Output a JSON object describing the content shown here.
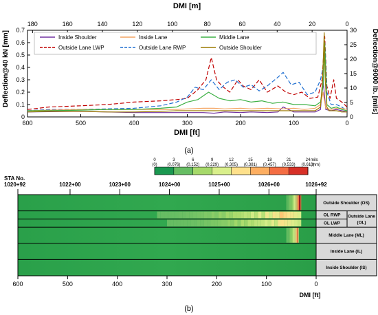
{
  "chart_data": [
    {
      "type": "line",
      "panel_label": "(a)",
      "xlabel_bottom": "DMI [ft]",
      "xlabel_top": "DMI [m]",
      "ylabel_left": "Deflection@40 kN [mm]",
      "ylabel_right": "Deflection@9000 lb. [mils]",
      "xlim": [
        600,
        0
      ],
      "ylim": [
        0,
        0.7
      ],
      "ylim_right": [
        0,
        30
      ],
      "xticks_bottom": [
        "600",
        "500",
        "400",
        "300",
        "200",
        "100",
        "0"
      ],
      "xticks_top": [
        "180",
        "160",
        "140",
        "120",
        "100",
        "80",
        "60",
        "40",
        "20",
        "0"
      ],
      "yticks_left": [
        "0",
        "0.1",
        "0.2",
        "0.3",
        "0.4",
        "0.5",
        "0.6",
        "0.7"
      ],
      "yticks_right": [
        "0",
        "5",
        "10",
        "15",
        "20",
        "25",
        "30"
      ],
      "legend_position": "top",
      "series": [
        {
          "name": "Inside Shoulder",
          "color": "#7030a0",
          "dash": "solid",
          "x": [
            600,
            560,
            500,
            450,
            400,
            350,
            320,
            300,
            270,
            250,
            230,
            200,
            180,
            150,
            130,
            120,
            100,
            80,
            60,
            50,
            45,
            40,
            30,
            20,
            10,
            0
          ],
          "y": [
            0.04,
            0.042,
            0.045,
            0.04,
            0.035,
            0.035,
            0.035,
            0.035,
            0.035,
            0.03,
            0.04,
            0.035,
            0.04,
            0.035,
            0.04,
            0.08,
            0.04,
            0.04,
            0.04,
            0.06,
            0.3,
            0.06,
            0.05,
            0.06,
            0.05,
            0.04
          ]
        },
        {
          "name": "Inside Lane",
          "color": "#f4a460",
          "dash": "solid",
          "x": [
            600,
            560,
            500,
            450,
            400,
            350,
            320,
            300,
            270,
            250,
            230,
            200,
            180,
            150,
            120,
            100,
            80,
            60,
            50,
            45,
            40,
            30,
            20,
            10,
            0
          ],
          "y": [
            0.05,
            0.055,
            0.06,
            0.06,
            0.06,
            0.06,
            0.06,
            0.065,
            0.07,
            0.07,
            0.065,
            0.07,
            0.065,
            0.07,
            0.065,
            0.07,
            0.06,
            0.07,
            0.1,
            0.2,
            0.07,
            0.06,
            0.07,
            0.07,
            0.06
          ]
        },
        {
          "name": "Middle Lane",
          "color": "#3cb043",
          "dash": "solid",
          "x": [
            600,
            560,
            500,
            450,
            400,
            350,
            320,
            300,
            280,
            260,
            240,
            220,
            200,
            180,
            160,
            140,
            120,
            100,
            80,
            60,
            50,
            45,
            42,
            38,
            30,
            20,
            10,
            0
          ],
          "y": [
            0.05,
            0.05,
            0.055,
            0.06,
            0.06,
            0.07,
            0.08,
            0.12,
            0.14,
            0.2,
            0.15,
            0.13,
            0.14,
            0.12,
            0.13,
            0.11,
            0.12,
            0.1,
            0.1,
            0.09,
            0.12,
            0.25,
            0.6,
            0.1,
            0.07,
            0.08,
            0.06,
            0.05
          ]
        },
        {
          "name": "Outside Lane LWP",
          "color": "#c00000",
          "dash": "6,3",
          "x": [
            600,
            560,
            500,
            450,
            400,
            350,
            320,
            300,
            280,
            265,
            255,
            245,
            235,
            220,
            205,
            195,
            180,
            165,
            150,
            130,
            115,
            100,
            85,
            70,
            55,
            47,
            42,
            38,
            32,
            25,
            20,
            10,
            0
          ],
          "y": [
            0.06,
            0.08,
            0.09,
            0.1,
            0.12,
            0.13,
            0.14,
            0.15,
            0.22,
            0.3,
            0.48,
            0.3,
            0.25,
            0.2,
            0.3,
            0.25,
            0.22,
            0.3,
            0.2,
            0.25,
            0.2,
            0.18,
            0.2,
            0.15,
            0.16,
            0.3,
            0.65,
            0.25,
            0.15,
            0.3,
            0.15,
            0.12,
            0.08
          ]
        },
        {
          "name": "Outside Lane RWP",
          "color": "#1f6fd1",
          "dash": "6,3",
          "x": [
            600,
            560,
            500,
            450,
            400,
            350,
            320,
            300,
            285,
            270,
            255,
            240,
            225,
            210,
            195,
            180,
            165,
            150,
            130,
            120,
            105,
            90,
            75,
            60,
            50,
            45,
            42,
            38,
            30,
            20,
            10,
            0
          ],
          "y": [
            0.05,
            0.06,
            0.06,
            0.065,
            0.07,
            0.09,
            0.12,
            0.16,
            0.24,
            0.22,
            0.3,
            0.22,
            0.28,
            0.3,
            0.24,
            0.26,
            0.21,
            0.25,
            0.32,
            0.36,
            0.26,
            0.28,
            0.18,
            0.2,
            0.3,
            0.4,
            0.6,
            0.2,
            0.1,
            0.1,
            0.08,
            0.05
          ]
        },
        {
          "name": "Outside Shoulder",
          "color": "#9c7a00",
          "dash": "solid",
          "x": [
            600,
            560,
            500,
            450,
            400,
            350,
            320,
            300,
            250,
            200,
            150,
            100,
            80,
            60,
            50,
            46,
            43,
            41,
            38,
            34,
            30,
            20,
            10,
            0
          ],
          "y": [
            0.04,
            0.045,
            0.045,
            0.04,
            0.04,
            0.045,
            0.05,
            0.05,
            0.05,
            0.05,
            0.05,
            0.05,
            0.05,
            0.05,
            0.08,
            0.3,
            0.68,
            0.3,
            0.08,
            0.05,
            0.05,
            0.05,
            0.04,
            0.04
          ]
        }
      ]
    },
    {
      "type": "heatmap",
      "panel_label": "(b)",
      "colorbar_unit_top": "mils",
      "colorbar_unit_bottom": "(mm)",
      "colorbar_ticks_mils": [
        "0",
        "3",
        "6",
        "9",
        "12",
        "15",
        "18",
        "21",
        "24"
      ],
      "colorbar_ticks_mm": [
        "(0)",
        "(0.076)",
        "(0.152)",
        "(0.229)",
        "(0.305)",
        "(0.381)",
        "(0.457)",
        "(0.533)",
        "(0.610)"
      ],
      "colorbar_colors": [
        "#1a9850",
        "#66bd63",
        "#a6d96a",
        "#d9ef8b",
        "#fee08b",
        "#fdae61",
        "#f46d43",
        "#d73027",
        "#a50026"
      ],
      "xlabel": "DMI [ft]",
      "xlim": [
        600,
        0
      ],
      "xticks": [
        "600",
        "500",
        "400",
        "300",
        "200",
        "100",
        "0"
      ],
      "station_title": "STA No.",
      "stations": [
        {
          "label": "1020+92",
          "dmi": 600
        },
        {
          "label": "1022+00",
          "dmi": 495
        },
        {
          "label": "1023+00",
          "dmi": 395
        },
        {
          "label": "1024+00",
          "dmi": 295
        },
        {
          "label": "1025+00",
          "dmi": 195
        },
        {
          "label": "1026+00",
          "dmi": 95
        },
        {
          "label": "1026+92",
          "dmi": 0
        }
      ],
      "rows": [
        {
          "label": "Outside Shoulder (OS)"
        },
        {
          "label": "OL RWP",
          "group": "Outside Lane (OL)"
        },
        {
          "label": "OL LWP",
          "group": "Outside Lane (OL)"
        },
        {
          "label": "Middle Lane (ML)"
        },
        {
          "label": "Inside Lane (IL)"
        },
        {
          "label": "Inside Shoulder (IS)"
        }
      ],
      "hotspots_mils": [
        {
          "row": "Outside Shoulder (OS)",
          "x": [
            60,
            30
          ],
          "peak": 27
        },
        {
          "row": "OL RWP",
          "x": [
            320,
            30
          ],
          "peak": 14
        },
        {
          "row": "OL LWP",
          "x": [
            300,
            30
          ],
          "peak": 12
        },
        {
          "row": "Middle Lane (ML)",
          "x": [
            60,
            35
          ],
          "peak": 20
        }
      ]
    }
  ]
}
